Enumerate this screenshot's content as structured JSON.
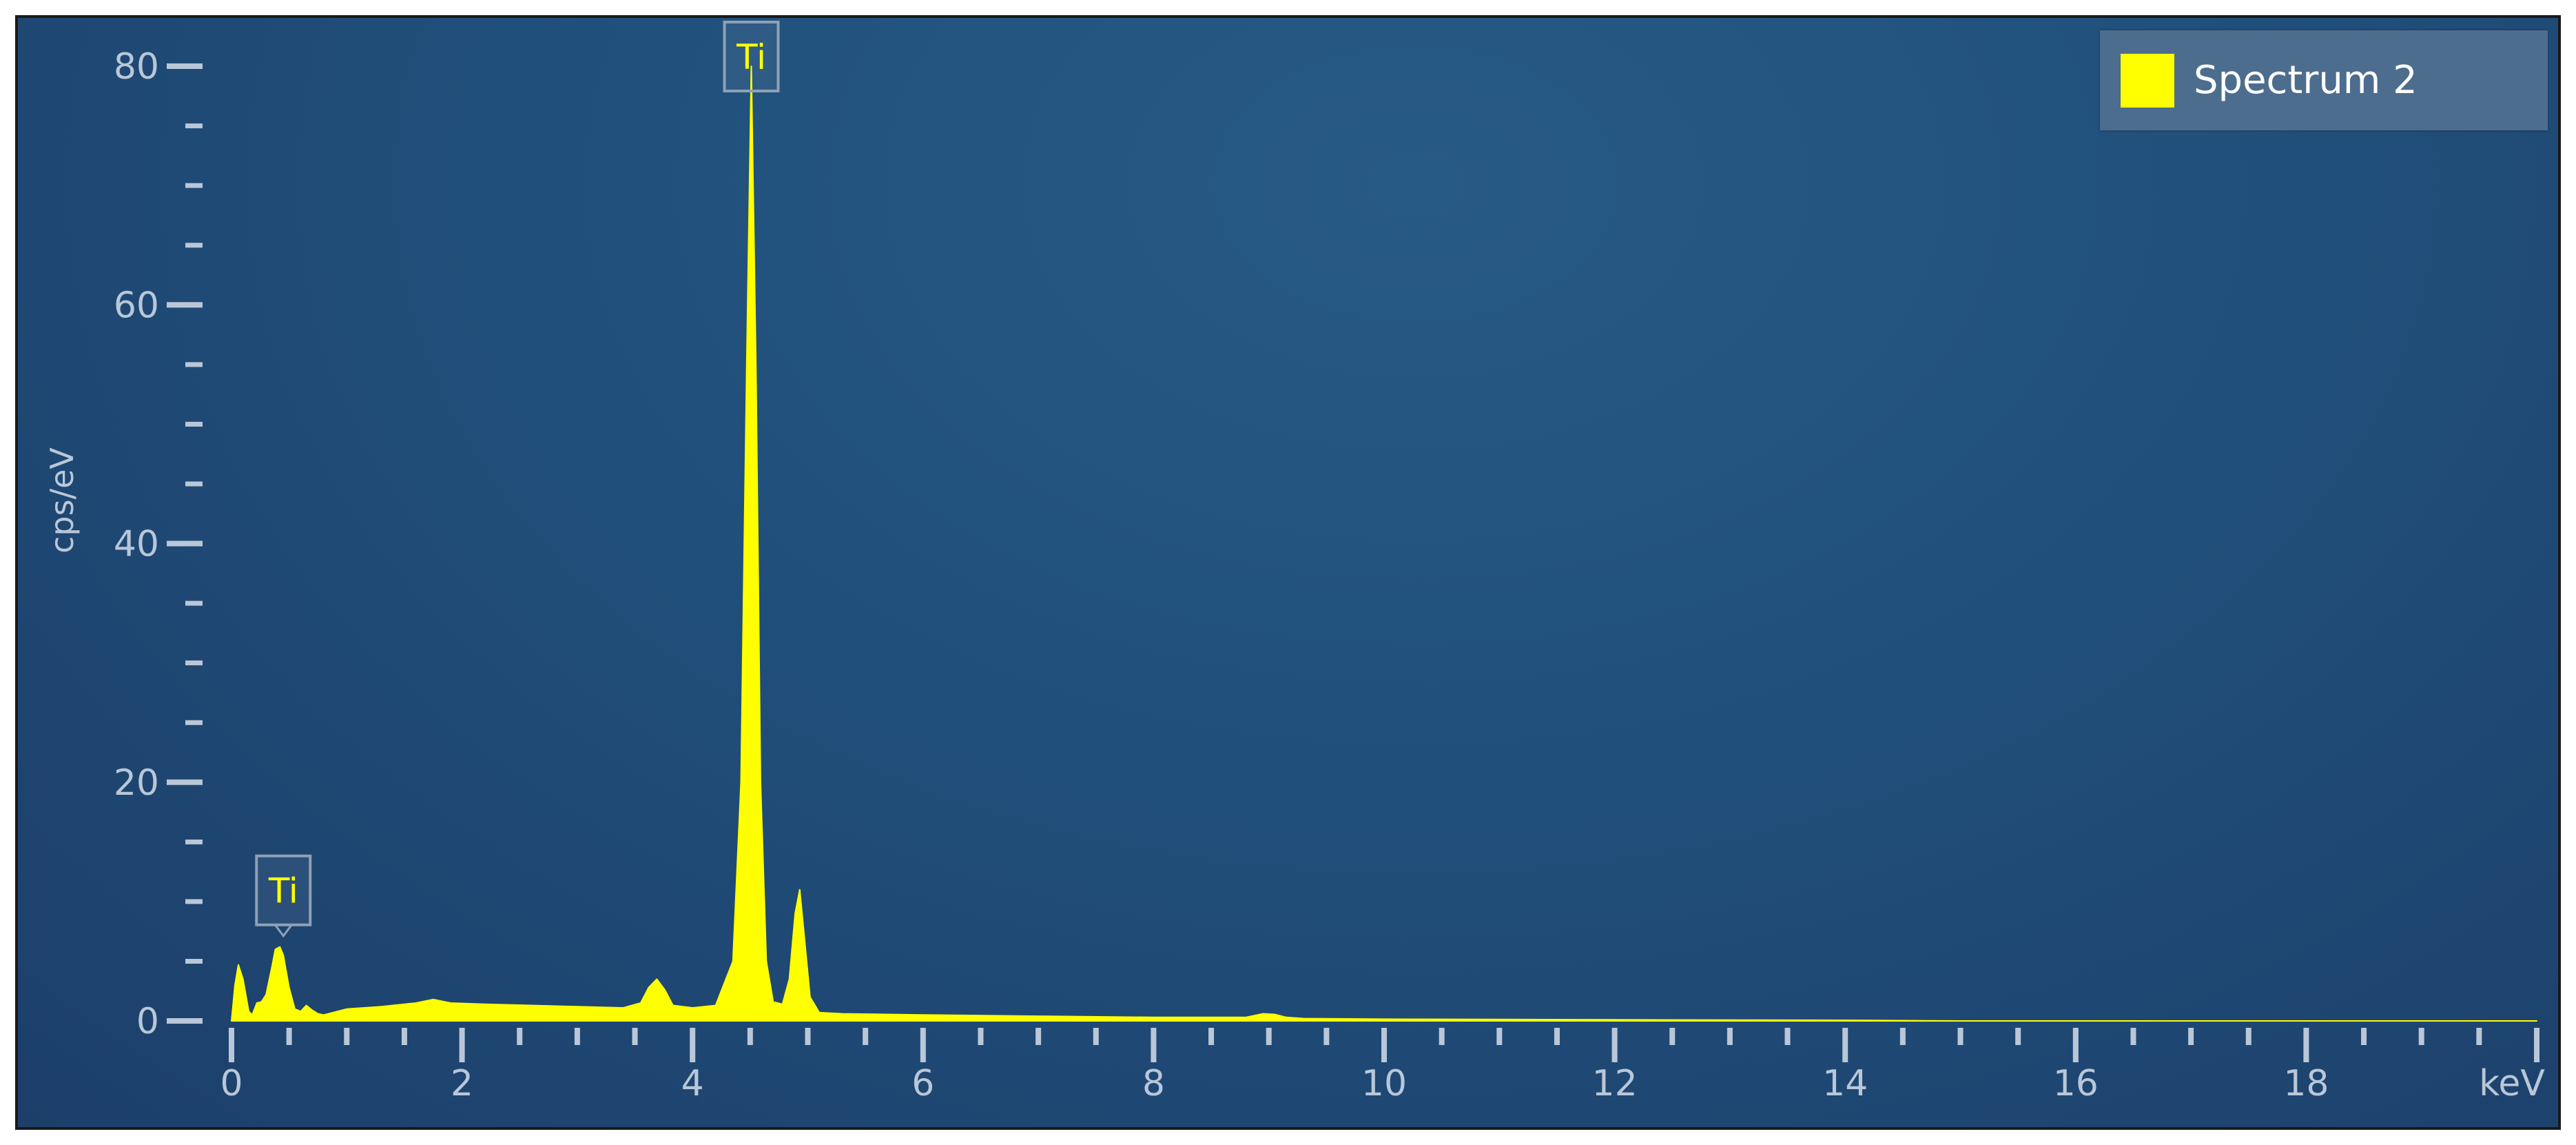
{
  "chart_data": {
    "type": "area",
    "xlabel": "keV",
    "ylabel": "cps/eV",
    "xlim": [
      0,
      20
    ],
    "ylim": [
      0,
      80
    ],
    "x_major_ticks": [
      0,
      2,
      4,
      6,
      8,
      10,
      12,
      14,
      16,
      18
    ],
    "x_tick_labels": [
      "0",
      "2",
      "4",
      "6",
      "8",
      "10",
      "12",
      "14",
      "16",
      "18"
    ],
    "y_major_ticks": [
      0,
      20,
      40,
      60,
      80
    ],
    "y_tick_labels": [
      "0",
      "20",
      "40",
      "60",
      "80"
    ],
    "grid": false,
    "legend_position": "top-right",
    "series": [
      {
        "name": "Spectrum 2",
        "color": "#ffff00",
        "x": [
          0.0,
          0.03,
          0.06,
          0.1,
          0.15,
          0.18,
          0.22,
          0.26,
          0.3,
          0.35,
          0.38,
          0.42,
          0.45,
          0.5,
          0.55,
          0.6,
          0.65,
          0.7,
          0.75,
          0.8,
          1.0,
          1.3,
          1.6,
          1.75,
          1.9,
          2.2,
          2.6,
          3.0,
          3.4,
          3.55,
          3.62,
          3.69,
          3.76,
          3.83,
          4.0,
          4.2,
          4.35,
          4.42,
          4.47,
          4.51,
          4.55,
          4.59,
          4.64,
          4.7,
          4.78,
          4.84,
          4.89,
          4.93,
          4.97,
          5.02,
          5.1,
          5.3,
          6.0,
          7.0,
          8.0,
          8.8,
          8.95,
          9.05,
          9.15,
          9.3,
          10.0,
          12.0,
          14.0,
          15.0,
          20.0
        ],
        "y": [
          0.0,
          3.0,
          4.7,
          3.5,
          0.8,
          0.5,
          1.5,
          1.6,
          2.2,
          4.5,
          6.0,
          6.2,
          5.5,
          2.8,
          1.0,
          0.8,
          1.3,
          0.9,
          0.6,
          0.5,
          1.0,
          1.2,
          1.5,
          1.8,
          1.5,
          1.4,
          1.3,
          1.2,
          1.1,
          1.5,
          2.8,
          3.5,
          2.6,
          1.3,
          1.1,
          1.3,
          5.0,
          20.0,
          55.0,
          80.0,
          55.0,
          20.0,
          5.0,
          1.6,
          1.4,
          3.5,
          9.0,
          11.0,
          7.0,
          2.0,
          0.7,
          0.6,
          0.5,
          0.4,
          0.3,
          0.3,
          0.6,
          0.55,
          0.3,
          0.2,
          0.15,
          0.1,
          0.06,
          0.0,
          0.0
        ]
      }
    ],
    "annotations": [
      {
        "text": "Ti",
        "x": 4.51,
        "y": 80
      },
      {
        "text": "Ti",
        "x": 0.45,
        "y": 6.2
      }
    ]
  }
}
